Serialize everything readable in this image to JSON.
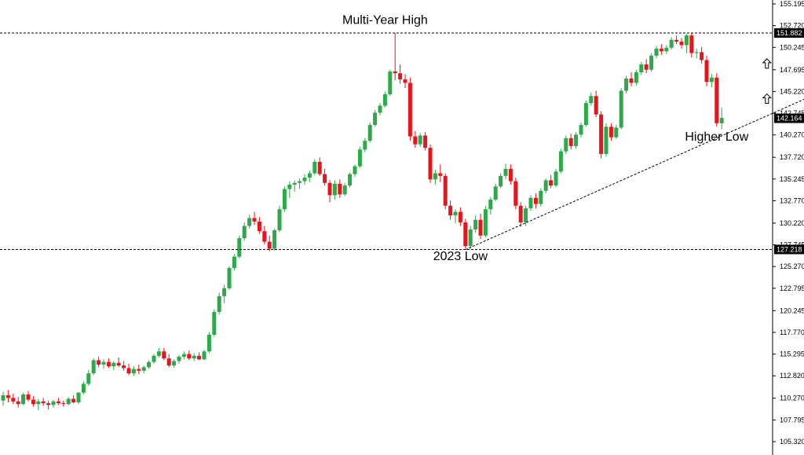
{
  "chart_data": {
    "type": "candlestick",
    "colors": {
      "up": "#2da84a",
      "down": "#e8141c",
      "axis": "#000000",
      "guide": "#000000"
    },
    "ylim": [
      105.32,
      155.195
    ],
    "y_ticks": [
      "155.195",
      "152.720",
      "150.245",
      "147.695",
      "145.220",
      "142.745",
      "140.270",
      "137.720",
      "135.245",
      "132.770",
      "130.220",
      "127.745",
      "125.270",
      "122.795",
      "120.245",
      "117.770",
      "115.295",
      "112.820",
      "110.270",
      "107.795",
      "105.320"
    ],
    "price_tags": [
      {
        "label": "151.882",
        "value": 151.882
      },
      {
        "label": "142.164",
        "value": 142.164
      },
      {
        "label": "127.218",
        "value": 127.218
      }
    ],
    "horizontal_lines": [
      {
        "value": 151.882,
        "style": "dashed"
      },
      {
        "value": 127.218,
        "style": "dashed"
      }
    ],
    "trendline": {
      "from": {
        "bar": 92,
        "value": 127.2
      },
      "to": {
        "bar": 164,
        "value": 145.5
      },
      "style": "dashed"
    },
    "annotations": [
      {
        "text": "Multi-Year High",
        "bar": 76,
        "value": 152.9
      },
      {
        "text": "2023 Low",
        "bar": 91,
        "value": 126.0
      },
      {
        "text": "Higher Low",
        "bar": 142,
        "value": 139.6
      }
    ],
    "arrows": [
      {
        "type": "up-arrow",
        "bar": 152,
        "value": 148.4
      },
      {
        "type": "up-arrow",
        "bar": 152,
        "value": 144.4
      }
    ],
    "candles": [
      [
        110.0,
        111.0,
        109.4,
        110.6
      ],
      [
        110.6,
        111.2,
        109.8,
        110.3
      ],
      [
        110.3,
        110.8,
        109.6,
        109.9
      ],
      [
        109.9,
        110.4,
        109.2,
        109.6
      ],
      [
        109.6,
        110.9,
        109.5,
        110.7
      ],
      [
        110.7,
        111.1,
        109.9,
        110.1
      ],
      [
        110.1,
        110.5,
        109.3,
        109.6
      ],
      [
        109.6,
        110.2,
        108.9,
        109.9
      ],
      [
        109.9,
        110.3,
        109.4,
        109.7
      ],
      [
        109.7,
        110.0,
        109.0,
        109.5
      ],
      [
        109.5,
        110.1,
        109.2,
        109.9
      ],
      [
        109.9,
        110.3,
        109.5,
        109.7
      ],
      [
        109.7,
        110.0,
        109.3,
        109.6
      ],
      [
        109.6,
        110.4,
        109.5,
        110.2
      ],
      [
        110.2,
        110.6,
        109.7,
        109.8
      ],
      [
        109.8,
        111.0,
        109.6,
        110.9
      ],
      [
        110.9,
        112.2,
        110.7,
        111.9
      ],
      [
        111.9,
        113.5,
        111.7,
        113.1
      ],
      [
        113.1,
        114.8,
        112.9,
        114.6
      ],
      [
        114.6,
        115.0,
        113.8,
        114.1
      ],
      [
        114.1,
        114.7,
        113.6,
        114.4
      ],
      [
        114.4,
        114.8,
        113.7,
        113.9
      ],
      [
        113.9,
        114.5,
        113.5,
        114.3
      ],
      [
        114.3,
        114.9,
        113.8,
        114.0
      ],
      [
        114.0,
        114.5,
        113.4,
        113.7
      ],
      [
        113.7,
        114.2,
        112.9,
        113.1
      ],
      [
        113.1,
        113.9,
        112.8,
        113.6
      ],
      [
        113.6,
        114.1,
        113.0,
        113.4
      ],
      [
        113.4,
        114.0,
        113.1,
        113.8
      ],
      [
        113.8,
        114.6,
        113.6,
        114.4
      ],
      [
        114.4,
        115.3,
        114.2,
        115.1
      ],
      [
        115.1,
        116.0,
        114.9,
        115.6
      ],
      [
        115.6,
        116.0,
        114.6,
        114.8
      ],
      [
        114.8,
        115.3,
        113.8,
        114.0
      ],
      [
        114.0,
        114.7,
        113.7,
        114.5
      ],
      [
        114.5,
        115.2,
        114.2,
        115.0
      ],
      [
        115.0,
        115.6,
        114.7,
        115.3
      ],
      [
        115.3,
        115.7,
        114.6,
        114.8
      ],
      [
        114.8,
        115.4,
        114.5,
        115.1
      ],
      [
        115.1,
        115.5,
        114.6,
        114.7
      ],
      [
        114.7,
        115.8,
        114.6,
        115.6
      ],
      [
        115.6,
        117.8,
        115.4,
        117.5
      ],
      [
        117.5,
        120.4,
        117.3,
        120.1
      ],
      [
        120.1,
        122.3,
        119.8,
        121.9
      ],
      [
        121.9,
        123.2,
        121.1,
        122.8
      ],
      [
        122.8,
        125.3,
        122.6,
        125.1
      ],
      [
        125.1,
        126.7,
        124.8,
        126.4
      ],
      [
        126.4,
        128.8,
        126.2,
        128.5
      ],
      [
        128.5,
        130.3,
        128.2,
        129.9
      ],
      [
        129.9,
        131.2,
        129.6,
        130.8
      ],
      [
        130.8,
        131.5,
        130.0,
        130.4
      ],
      [
        130.4,
        130.9,
        129.0,
        129.3
      ],
      [
        129.3,
        129.9,
        127.8,
        128.1
      ],
      [
        128.1,
        128.8,
        127.0,
        127.3
      ],
      [
        127.3,
        129.6,
        127.1,
        129.4
      ],
      [
        129.4,
        132.2,
        129.2,
        131.8
      ],
      [
        131.8,
        134.4,
        131.5,
        134.1
      ],
      [
        134.1,
        135.0,
        133.1,
        134.6
      ],
      [
        134.6,
        135.1,
        133.8,
        134.8
      ],
      [
        134.8,
        135.3,
        134.1,
        135.0
      ],
      [
        135.0,
        135.8,
        134.6,
        135.4
      ],
      [
        135.4,
        136.2,
        134.9,
        135.9
      ],
      [
        135.9,
        137.5,
        135.7,
        137.2
      ],
      [
        137.2,
        137.7,
        135.6,
        135.8
      ],
      [
        135.8,
        136.4,
        134.5,
        134.8
      ],
      [
        134.8,
        135.1,
        132.6,
        133.4
      ],
      [
        133.4,
        135.1,
        132.9,
        134.7
      ],
      [
        134.7,
        135.2,
        133.1,
        133.5
      ],
      [
        133.5,
        134.8,
        133.3,
        134.5
      ],
      [
        134.5,
        136.0,
        134.3,
        135.8
      ],
      [
        135.8,
        136.9,
        135.5,
        136.7
      ],
      [
        136.7,
        138.9,
        136.5,
        138.6
      ],
      [
        138.6,
        139.9,
        138.3,
        139.6
      ],
      [
        139.6,
        141.7,
        139.4,
        141.4
      ],
      [
        141.4,
        143.1,
        141.2,
        142.8
      ],
      [
        142.8,
        143.9,
        142.5,
        143.6
      ],
      [
        143.6,
        145.2,
        143.4,
        144.9
      ],
      [
        144.9,
        147.7,
        144.7,
        147.5
      ],
      [
        147.5,
        151.9,
        146.5,
        147.3
      ],
      [
        147.3,
        148.3,
        146.1,
        146.6
      ],
      [
        146.6,
        147.2,
        145.6,
        146.2
      ],
      [
        146.2,
        146.8,
        139.6,
        140.1
      ],
      [
        140.1,
        140.7,
        138.8,
        139.2
      ],
      [
        139.2,
        140.5,
        138.9,
        140.2
      ],
      [
        140.2,
        140.6,
        138.5,
        138.8
      ],
      [
        138.8,
        139.2,
        134.8,
        135.2
      ],
      [
        135.2,
        136.3,
        134.6,
        135.9
      ],
      [
        135.9,
        136.9,
        134.9,
        135.6
      ],
      [
        135.6,
        135.9,
        131.8,
        132.2
      ],
      [
        132.2,
        132.8,
        130.6,
        131.1
      ],
      [
        131.1,
        131.8,
        130.2,
        131.5
      ],
      [
        131.5,
        132.0,
        129.9,
        130.3
      ],
      [
        130.3,
        130.7,
        127.3,
        127.6
      ],
      [
        127.6,
        129.9,
        127.3,
        129.5
      ],
      [
        129.5,
        131.1,
        129.1,
        130.6
      ],
      [
        130.6,
        131.3,
        128.4,
        128.8
      ],
      [
        128.8,
        132.2,
        128.6,
        131.8
      ],
      [
        131.8,
        133.2,
        131.2,
        132.9
      ],
      [
        132.9,
        134.7,
        132.7,
        134.4
      ],
      [
        134.4,
        135.9,
        134.2,
        135.6
      ],
      [
        135.6,
        137.0,
        135.2,
        136.4
      ],
      [
        136.4,
        136.9,
        134.6,
        135.0
      ],
      [
        135.0,
        135.4,
        131.8,
        132.2
      ],
      [
        132.2,
        132.6,
        129.8,
        130.3
      ],
      [
        130.3,
        132.2,
        129.9,
        131.9
      ],
      [
        131.9,
        133.4,
        131.6,
        133.1
      ],
      [
        133.1,
        133.6,
        131.9,
        132.4
      ],
      [
        132.4,
        134.2,
        132.1,
        133.9
      ],
      [
        133.9,
        135.3,
        133.6,
        135.1
      ],
      [
        135.1,
        135.7,
        134.2,
        134.5
      ],
      [
        134.5,
        136.4,
        134.3,
        136.1
      ],
      [
        136.1,
        138.7,
        135.9,
        138.4
      ],
      [
        138.4,
        140.2,
        138.1,
        139.9
      ],
      [
        139.9,
        140.4,
        138.6,
        139.0
      ],
      [
        139.0,
        140.6,
        138.7,
        140.3
      ],
      [
        140.3,
        141.7,
        140.0,
        141.4
      ],
      [
        141.4,
        144.2,
        141.2,
        143.9
      ],
      [
        143.9,
        145.1,
        143.6,
        144.7
      ],
      [
        144.7,
        145.3,
        142.3,
        142.6
      ],
      [
        142.6,
        143.0,
        137.6,
        138.1
      ],
      [
        138.1,
        141.6,
        137.8,
        141.2
      ],
      [
        141.2,
        141.6,
        139.6,
        140.0
      ],
      [
        140.0,
        141.4,
        139.8,
        141.1
      ],
      [
        141.1,
        145.6,
        140.9,
        145.3
      ],
      [
        145.3,
        147.0,
        145.0,
        146.7
      ],
      [
        146.7,
        147.4,
        145.8,
        146.2
      ],
      [
        146.2,
        147.7,
        145.9,
        147.4
      ],
      [
        147.4,
        148.6,
        147.1,
        148.3
      ],
      [
        148.3,
        148.9,
        147.3,
        147.7
      ],
      [
        147.7,
        149.6,
        147.5,
        149.3
      ],
      [
        149.3,
        150.4,
        149.0,
        150.1
      ],
      [
        150.1,
        150.6,
        149.4,
        149.8
      ],
      [
        149.8,
        150.5,
        149.5,
        150.2
      ],
      [
        150.2,
        151.4,
        150.0,
        151.1
      ],
      [
        151.1,
        151.6,
        150.6,
        150.9
      ],
      [
        150.9,
        151.3,
        150.1,
        150.5
      ],
      [
        150.5,
        151.8,
        149.6,
        151.6
      ],
      [
        151.6,
        151.9,
        149.1,
        149.6
      ],
      [
        149.6,
        150.1,
        149.0,
        149.7
      ],
      [
        149.7,
        150.3,
        148.4,
        148.8
      ],
      [
        148.8,
        149.3,
        145.8,
        146.3
      ],
      [
        146.3,
        147.2,
        145.7,
        146.8
      ],
      [
        146.8,
        147.3,
        141.2,
        141.6
      ],
      [
        141.6,
        143.4,
        140.9,
        142.2
      ]
    ]
  }
}
